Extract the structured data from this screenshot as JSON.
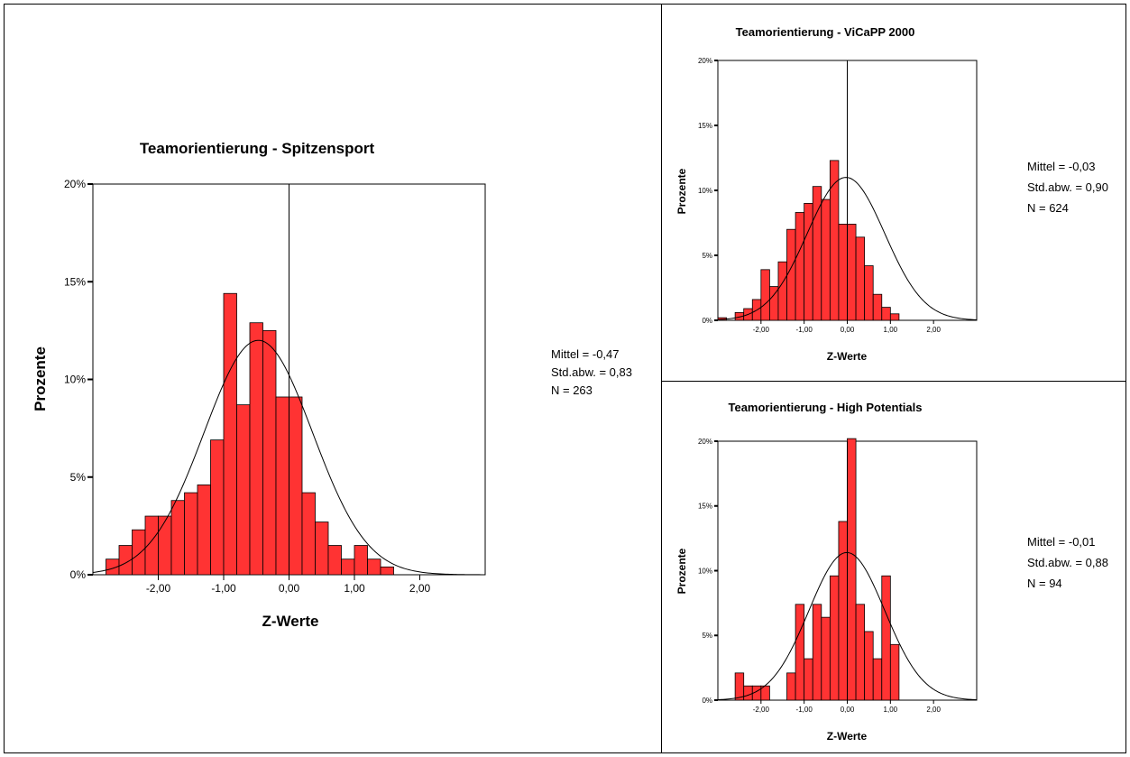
{
  "chart_data": [
    {
      "id": "spitzensport",
      "type": "bar",
      "title": "Teamorientierung - Spitzensport",
      "xlabel": "Z-Werte",
      "ylabel": "Prozente",
      "xlim": [
        -3.0,
        3.0
      ],
      "ylim": [
        0,
        20
      ],
      "bin_width": 0.2,
      "x_ticks": [
        -2,
        -1,
        0,
        1,
        2
      ],
      "x_tick_labels": [
        "-2,00",
        "-1,00",
        "0,00",
        "1,00",
        "2,00"
      ],
      "y_ticks": [
        0,
        5,
        10,
        15,
        20
      ],
      "y_tick_labels": [
        "0%",
        "5%",
        "10%",
        "15%",
        "20%"
      ],
      "bin_starts": [
        -2.8,
        -2.6,
        -2.4,
        -2.2,
        -2.0,
        -1.8,
        -1.6,
        -1.4,
        -1.2,
        -1.0,
        -0.8,
        -0.6,
        -0.4,
        -0.2,
        0.0,
        0.2,
        0.4,
        0.6,
        0.8,
        1.0,
        1.2,
        1.4,
        1.6
      ],
      "values": [
        0.8,
        1.5,
        2.3,
        3.0,
        3.0,
        3.8,
        4.2,
        4.6,
        6.9,
        14.4,
        8.7,
        12.9,
        12.5,
        9.1,
        9.1,
        4.2,
        2.7,
        1.5,
        0.8,
        1.5,
        0.8,
        0.4,
        0.0
      ],
      "stats": {
        "mean_line": "Mittel = -0,47",
        "sd_line": "Std.abw. = 0,83",
        "n_line": "N = 263"
      },
      "normal_curve": {
        "mean": -0.47,
        "sd": 0.83,
        "peak": 12.0
      },
      "bar_color": "#ff3333"
    },
    {
      "id": "vicapp",
      "type": "bar",
      "title": "Teamorientierung - ViCaPP 2000",
      "xlabel": "Z-Werte",
      "ylabel": "Prozente",
      "xlim": [
        -3.0,
        3.0
      ],
      "ylim": [
        0,
        20
      ],
      "bin_width": 0.2,
      "x_ticks": [
        -2,
        -1,
        0,
        1,
        2
      ],
      "x_tick_labels": [
        "-2,00",
        "-1,00",
        "0,00",
        "1,00",
        "2,00"
      ],
      "y_ticks": [
        0,
        5,
        10,
        15,
        20
      ],
      "y_tick_labels": [
        "0%",
        "5%",
        "10%",
        "15%",
        "20%"
      ],
      "bin_starts": [
        -3.0,
        -2.8,
        -2.6,
        -2.4,
        -2.2,
        -2.0,
        -1.8,
        -1.6,
        -1.4,
        -1.2,
        -1.0,
        -0.8,
        -0.6,
        -0.4,
        -0.2,
        0.0,
        0.2,
        0.4,
        0.6,
        0.8,
        1.0,
        1.2,
        1.4,
        1.6,
        1.8,
        2.0
      ],
      "values": [
        0.2,
        0.0,
        0.6,
        0.9,
        1.6,
        3.9,
        2.6,
        4.5,
        7.0,
        8.3,
        9.0,
        10.3,
        9.3,
        12.3,
        7.4,
        7.4,
        6.4,
        4.2,
        2.0,
        1.0,
        0.5,
        0.0,
        0.0,
        0.0,
        0.0,
        0.0
      ],
      "stats": {
        "mean_line": "Mittel = -0,03",
        "sd_line": "Std.abw. = 0,90",
        "n_line": "N = 624"
      },
      "normal_curve": {
        "mean": -0.03,
        "sd": 0.9,
        "peak": 11.0
      },
      "bar_color": "#ff3333"
    },
    {
      "id": "highpotentials",
      "type": "bar",
      "title": "Teamorientierung - High Potentials",
      "xlabel": "Z-Werte",
      "ylabel": "Prozente",
      "xlim": [
        -3.0,
        3.0
      ],
      "ylim": [
        0,
        20
      ],
      "bin_width": 0.2,
      "x_ticks": [
        -2,
        -1,
        0,
        1,
        2
      ],
      "x_tick_labels": [
        "-2,00",
        "-1,00",
        "0,00",
        "1,00",
        "2,00"
      ],
      "y_ticks": [
        0,
        5,
        10,
        15,
        20
      ],
      "y_tick_labels": [
        "0%",
        "5%",
        "10%",
        "15%",
        "20%"
      ],
      "bin_starts": [
        -2.6,
        -2.4,
        -2.2,
        -2.0,
        -1.8,
        -1.6,
        -1.4,
        -1.2,
        -1.0,
        -0.8,
        -0.6,
        -0.4,
        -0.2,
        0.0,
        0.2,
        0.4,
        0.6,
        0.8,
        1.0,
        1.2
      ],
      "values": [
        2.1,
        1.1,
        1.1,
        1.1,
        0.0,
        0.0,
        2.1,
        7.4,
        3.2,
        7.4,
        6.4,
        9.6,
        13.8,
        20.2,
        7.4,
        5.3,
        3.2,
        9.6,
        4.3,
        0.0
      ],
      "stats": {
        "mean_line": "Mittel = -0,01",
        "sd_line": "Std.abw. = 0,88",
        "n_line": "N = 94"
      },
      "normal_curve": {
        "mean": -0.01,
        "sd": 0.88,
        "peak": 11.4
      },
      "bar_color": "#ff3333"
    }
  ]
}
